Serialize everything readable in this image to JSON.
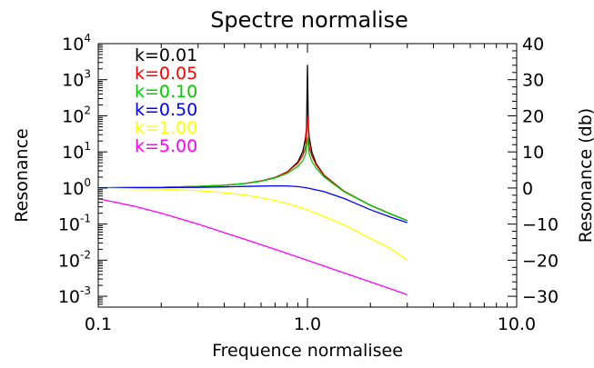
{
  "chart_data": {
    "type": "line",
    "title": "Spectre normalise",
    "xlabel": "Frequence normalisee",
    "ylabel": "Resonance",
    "y2label": "Resonance (db)",
    "xscale": "log",
    "yscale": "log",
    "xlim": [
      0.1,
      10
    ],
    "ylim": [
      0.0005,
      10000
    ],
    "y2lim": [
      -33,
      40
    ],
    "x_ticks": [
      {
        "value": 0.1,
        "label": "0.1"
      },
      {
        "value": 1,
        "label": "1.0"
      },
      {
        "value": 10,
        "label": "10.0"
      }
    ],
    "y_ticks": [
      {
        "value": 0.001,
        "base": "10",
        "exp": "-3"
      },
      {
        "value": 0.01,
        "base": "10",
        "exp": "-2"
      },
      {
        "value": 0.1,
        "base": "10",
        "exp": "-1"
      },
      {
        "value": 1,
        "base": "10",
        "exp": "0"
      },
      {
        "value": 10,
        "base": "10",
        "exp": "1"
      },
      {
        "value": 100,
        "base": "10",
        "exp": "2"
      },
      {
        "value": 1000,
        "base": "10",
        "exp": "3"
      },
      {
        "value": 10000,
        "base": "10",
        "exp": "4"
      }
    ],
    "y2_ticks": [
      {
        "value": -30,
        "label": "-30"
      },
      {
        "value": -20,
        "label": "-20"
      },
      {
        "value": -10,
        "label": "-10"
      },
      {
        "value": 0,
        "label": "0"
      },
      {
        "value": 10,
        "label": "10"
      },
      {
        "value": 20,
        "label": "20"
      },
      {
        "value": 30,
        "label": "30"
      },
      {
        "value": 40,
        "label": "40"
      }
    ],
    "legend_position": "top-left",
    "series": [
      {
        "name": "k=0.01",
        "color": "#000000",
        "k": 0.01,
        "points": [
          [
            0.1,
            1.01
          ],
          [
            0.2,
            1.04
          ],
          [
            0.3,
            1.1
          ],
          [
            0.4,
            1.19
          ],
          [
            0.5,
            1.33
          ],
          [
            0.6,
            1.56
          ],
          [
            0.7,
            1.96
          ],
          [
            0.8,
            2.78
          ],
          [
            0.9,
            5.26
          ],
          [
            0.95,
            10.26
          ],
          [
            0.98,
            25.2
          ],
          [
            0.99,
            49.0
          ],
          [
            1.0,
            2500
          ],
          [
            1.01,
            49.0
          ],
          [
            1.02,
            24.7
          ],
          [
            1.05,
            9.76
          ],
          [
            1.1,
            4.76
          ],
          [
            1.2,
            2.27
          ],
          [
            1.5,
            0.8
          ],
          [
            2.0,
            0.333
          ],
          [
            2.5,
            0.19
          ],
          [
            3.0,
            0.125
          ]
        ]
      },
      {
        "name": "k=0.05",
        "color": "#ff0000",
        "k": 0.05,
        "points": [
          [
            0.1,
            1.01
          ],
          [
            0.2,
            1.04
          ],
          [
            0.3,
            1.1
          ],
          [
            0.4,
            1.19
          ],
          [
            0.5,
            1.33
          ],
          [
            0.6,
            1.56
          ],
          [
            0.7,
            1.95
          ],
          [
            0.8,
            2.74
          ],
          [
            0.9,
            4.9
          ],
          [
            0.95,
            8.0
          ],
          [
            0.98,
            13.6
          ],
          [
            1.0,
            100
          ],
          [
            1.02,
            13.4
          ],
          [
            1.05,
            7.6
          ],
          [
            1.1,
            4.4
          ],
          [
            1.2,
            2.21
          ],
          [
            1.5,
            0.8
          ],
          [
            2.0,
            0.333
          ],
          [
            2.5,
            0.19
          ],
          [
            3.0,
            0.125
          ]
        ]
      },
      {
        "name": "k=0.10",
        "color": "#00cc00",
        "k": 0.1,
        "points": [
          [
            0.1,
            1.01
          ],
          [
            0.2,
            1.04
          ],
          [
            0.3,
            1.1
          ],
          [
            0.4,
            1.19
          ],
          [
            0.5,
            1.32
          ],
          [
            0.6,
            1.53
          ],
          [
            0.7,
            1.89
          ],
          [
            0.8,
            2.54
          ],
          [
            0.9,
            3.98
          ],
          [
            0.95,
            5.7
          ],
          [
            0.98,
            8.8
          ],
          [
            1.0,
            25
          ],
          [
            1.02,
            8.6
          ],
          [
            1.05,
            5.4
          ],
          [
            1.1,
            3.6
          ],
          [
            1.2,
            2.03
          ],
          [
            1.5,
            0.78
          ],
          [
            2.0,
            0.332
          ],
          [
            2.5,
            0.19
          ],
          [
            3.0,
            0.125
          ]
        ]
      },
      {
        "name": "k=0.50",
        "color": "#0000ff",
        "k": 0.5,
        "points": [
          [
            0.1,
            1.0
          ],
          [
            0.2,
            1.02
          ],
          [
            0.3,
            1.04
          ],
          [
            0.4,
            1.07
          ],
          [
            0.5,
            1.1
          ],
          [
            0.6,
            1.13
          ],
          [
            0.7,
            1.15
          ],
          [
            0.8,
            1.14
          ],
          [
            0.9,
            1.09
          ],
          [
            1.0,
            1.0
          ],
          [
            1.2,
            0.79
          ],
          [
            1.5,
            0.51
          ],
          [
            2.0,
            0.25
          ],
          [
            2.5,
            0.155
          ],
          [
            3.0,
            0.11
          ]
        ]
      },
      {
        "name": "k=1.00",
        "color": "#ffff00",
        "k": 1.0,
        "points": [
          [
            0.1,
            0.98
          ],
          [
            0.2,
            0.93
          ],
          [
            0.3,
            0.85
          ],
          [
            0.4,
            0.74
          ],
          [
            0.5,
            0.64
          ],
          [
            0.6,
            0.54
          ],
          [
            0.7,
            0.45
          ],
          [
            0.8,
            0.37
          ],
          [
            1.0,
            0.25
          ],
          [
            1.5,
            0.095
          ],
          [
            2.0,
            0.04
          ],
          [
            2.5,
            0.021
          ],
          [
            3.0,
            0.01
          ]
        ]
      },
      {
        "name": "k=5.00",
        "color": "#ff00ff",
        "k": 5.0,
        "points": [
          [
            0.1,
            0.5
          ],
          [
            0.15,
            0.31
          ],
          [
            0.2,
            0.2
          ],
          [
            0.3,
            0.1
          ],
          [
            0.5,
            0.038
          ],
          [
            0.7,
            0.02
          ],
          [
            1.0,
            0.0099
          ],
          [
            1.5,
            0.0044
          ],
          [
            2.0,
            0.0025
          ],
          [
            2.5,
            0.0016
          ],
          [
            3.0,
            0.0011
          ]
        ]
      }
    ]
  }
}
